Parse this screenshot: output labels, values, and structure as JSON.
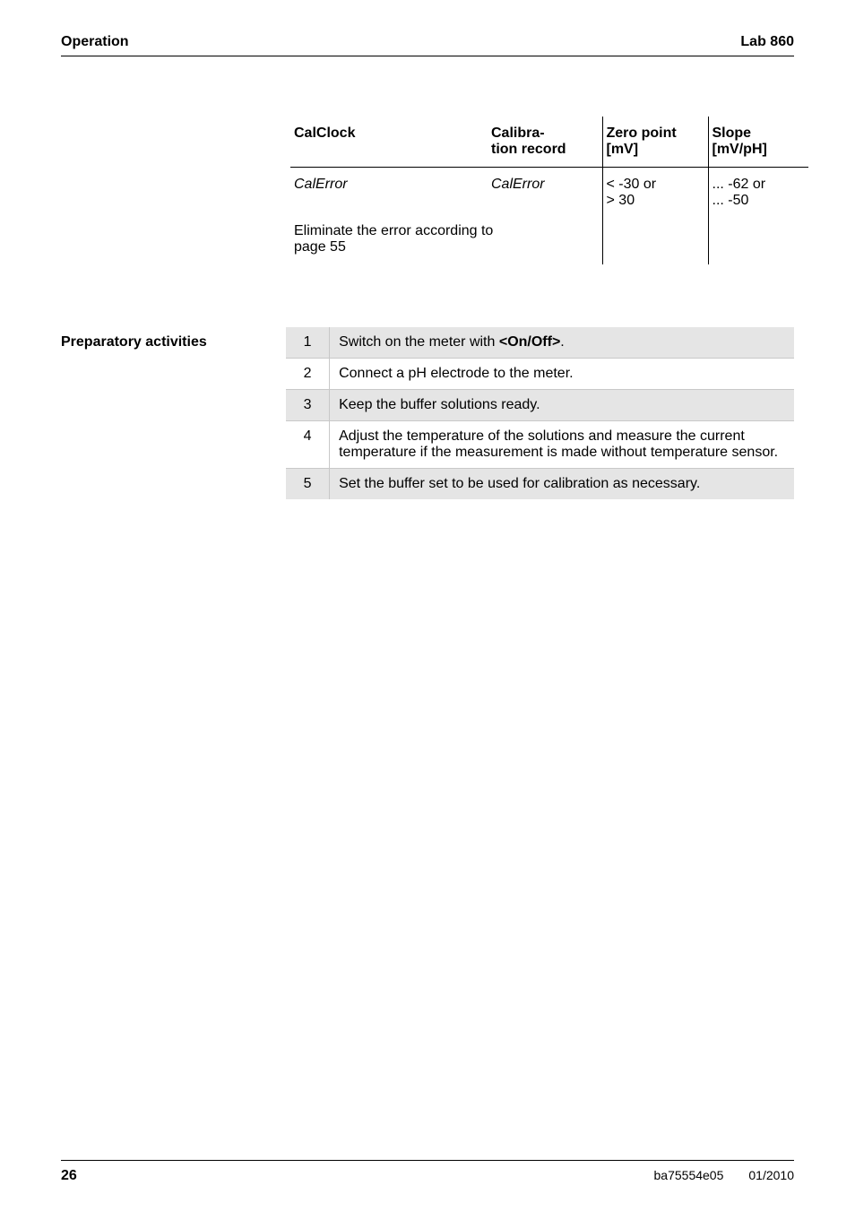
{
  "header": {
    "left": "Operation",
    "right": "Lab 860"
  },
  "cal_table": {
    "headers": {
      "c1": "CalClock",
      "c2_l1": "Calibra-",
      "c2_l2": "tion record",
      "c3_l1": "Zero point",
      "c3_l2": "[mV]",
      "c4_l1": "Slope",
      "c4_l2": "[mV/pH]"
    },
    "row1": {
      "c1": "CalError",
      "c2": "CalError",
      "c3_l1": "< -30 or",
      "c3_l2": "> 30",
      "c4_l1": "... -62 or",
      "c4_l2": "... -50"
    },
    "row2": {
      "span_l1": "Eliminate the error according to",
      "span_l2": "page 55"
    }
  },
  "prep": {
    "label": "Preparatory activities",
    "rows": [
      {
        "n": "1",
        "text": "Switch on the meter with <On/Off>."
      },
      {
        "n": "2",
        "text": "Connect a pH electrode to the meter."
      },
      {
        "n": "3",
        "text": "Keep the buffer solutions ready."
      },
      {
        "n": "4",
        "text": "Adjust the temperature of the solutions and measure the current temperature if the measurement is made without temperature sensor."
      },
      {
        "n": "5",
        "text": "Set the buffer set to be used for calibration as necessary."
      }
    ]
  },
  "footer": {
    "page": "26",
    "doc": "ba75554e05",
    "date": "01/2010"
  }
}
